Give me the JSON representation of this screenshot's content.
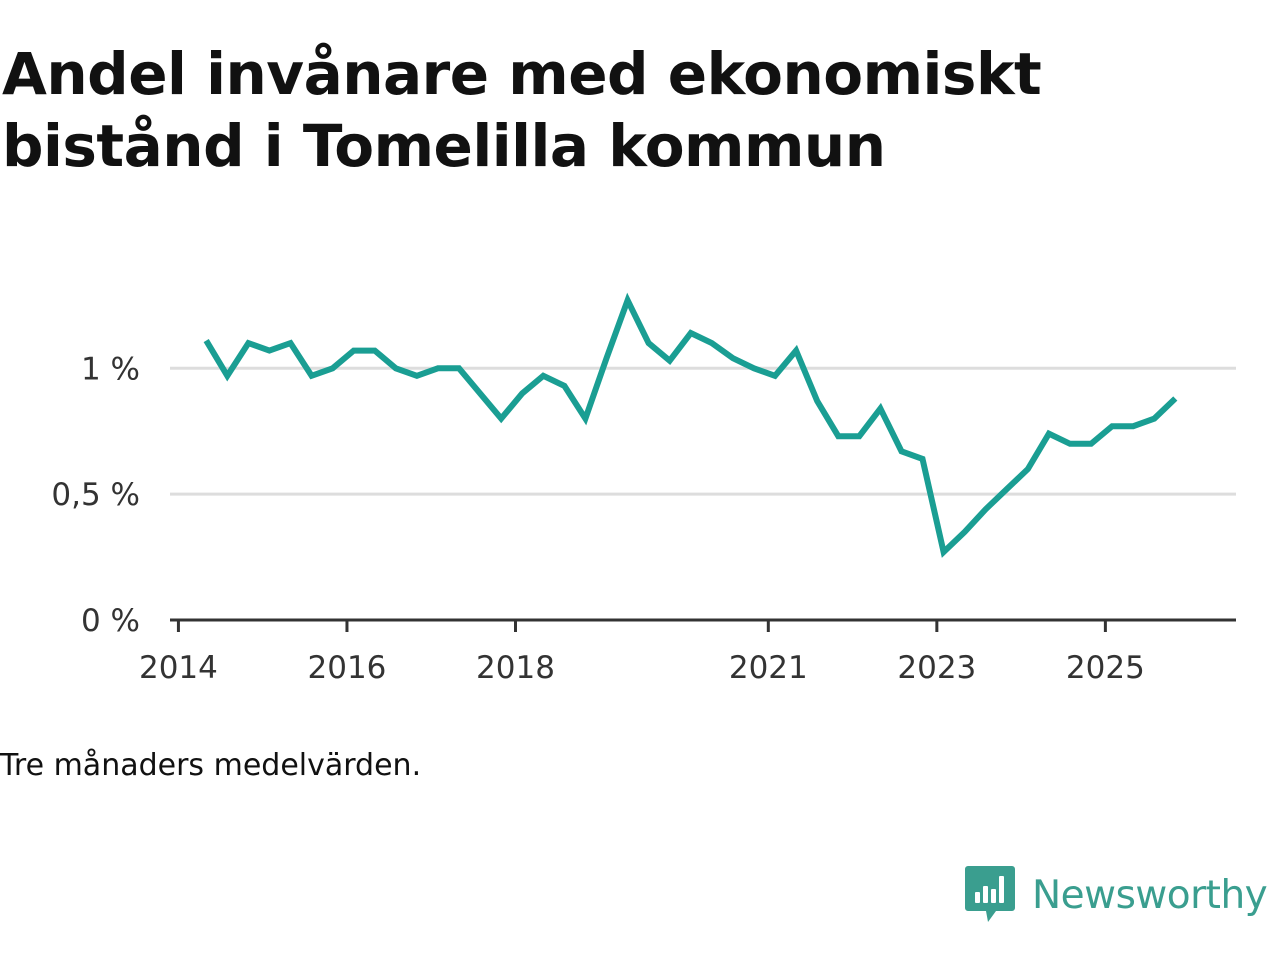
{
  "header": {
    "title": "Andel invånare med ekonomiskt bistånd i Tomelilla kommun"
  },
  "footer": {
    "caption": "Tre månaders medelvärden.",
    "brand": "Newsworthy",
    "brand_icon": "newsworthy-logo-icon"
  },
  "colors": {
    "line": "#1a9e93",
    "grid": "#dddddd",
    "axis": "#333333",
    "brand": "#3a9e8f"
  },
  "chart_data": {
    "type": "line",
    "title": "Andel invånare med ekonomiskt bistånd i Tomelilla kommun",
    "xlabel": "",
    "ylabel": "",
    "x_unit": "year (decimal)",
    "xlim": [
      2013.9,
      2026.55
    ],
    "ylim": [
      0,
      1.43
    ],
    "x_ticks": [
      2014,
      2016,
      2018,
      2021,
      2023,
      2025
    ],
    "x_tick_labels": [
      "2014",
      "2016",
      "2018",
      "2021",
      "2023",
      "2025"
    ],
    "y_ticks": [
      0,
      0.5,
      1
    ],
    "y_tick_labels": [
      "0 %",
      "0,5 %",
      "1 %"
    ],
    "grid": true,
    "legend": "none",
    "series": [
      {
        "name": "Andel invånare med ekonomiskt bistånd",
        "x": [
          2014.33,
          2014.58,
          2014.83,
          2015.08,
          2015.33,
          2015.58,
          2015.83,
          2016.08,
          2016.33,
          2016.58,
          2016.83,
          2017.08,
          2017.33,
          2017.58,
          2017.83,
          2018.08,
          2018.33,
          2018.58,
          2018.83,
          2019.08,
          2019.33,
          2019.58,
          2019.83,
          2020.08,
          2020.33,
          2020.58,
          2020.83,
          2021.08,
          2021.33,
          2021.58,
          2021.83,
          2022.08,
          2022.33,
          2022.58,
          2022.83,
          2023.08,
          2023.33,
          2023.58,
          2023.83,
          2024.08,
          2024.33,
          2024.58,
          2024.83,
          2025.08,
          2025.33,
          2025.58,
          2025.83
        ],
        "values": [
          1.11,
          0.97,
          1.1,
          1.07,
          1.1,
          0.97,
          1.0,
          1.07,
          1.07,
          1.0,
          0.97,
          1.0,
          1.0,
          0.9,
          0.8,
          0.9,
          0.97,
          0.93,
          0.8,
          1.04,
          1.27,
          1.1,
          1.03,
          1.14,
          1.1,
          1.04,
          1.0,
          0.97,
          1.07,
          0.87,
          0.73,
          0.73,
          0.84,
          0.67,
          0.64,
          0.27,
          0.35,
          0.44,
          0.52,
          0.6,
          0.74,
          0.7,
          0.7,
          0.77,
          0.77,
          0.8,
          0.88
        ]
      }
    ]
  }
}
